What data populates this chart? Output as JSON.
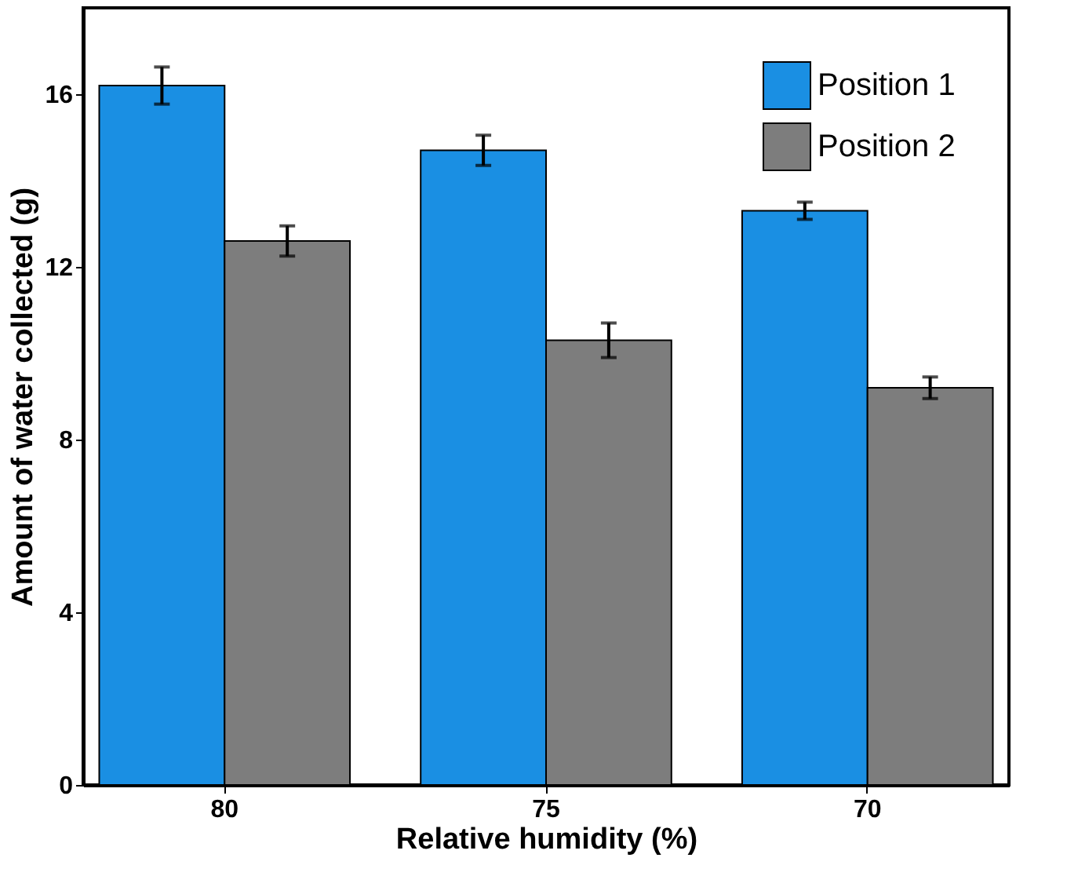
{
  "chart_data": {
    "type": "bar",
    "xlabel": "Relative humidity (%)",
    "ylabel": "Amount of water collected (g)",
    "categories": [
      "80",
      "75",
      "70"
    ],
    "series": [
      {
        "name": "Position 1",
        "color": "#1a8fe3",
        "values": [
          16.2,
          14.7,
          13.3
        ],
        "errors": [
          0.43,
          0.35,
          0.2
        ]
      },
      {
        "name": "Position 2",
        "color": "#7d7d7d",
        "values": [
          12.6,
          10.3,
          9.2
        ],
        "errors": [
          0.35,
          0.4,
          0.25
        ]
      }
    ],
    "ylim": [
      0,
      18
    ],
    "yticks": [
      0,
      4,
      8,
      12,
      16
    ],
    "grid": false,
    "legend": "top right"
  }
}
